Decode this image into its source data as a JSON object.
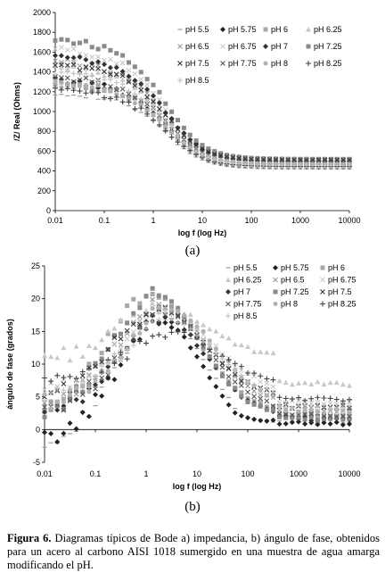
{
  "panel_labels": {
    "a": "(a)",
    "b": "(b)"
  },
  "caption": {
    "figure_label": "Figura 6.",
    "text": " Diagramas típicos de Bode a) impedancia, b) ángulo de fase, obtenidos para un acero al carbono AISI 1018 sumergido en una muestra de agua amarga modificando el pH."
  },
  "chart_data": [
    {
      "type": "scatter",
      "xlabel": "log f (log Hz)",
      "ylabel": "/Z/ Real (Ohms)",
      "x_scale": "log",
      "xlim": [
        0.01,
        10000
      ],
      "ylim": [
        0,
        2000
      ],
      "x_ticks": [
        "0.01",
        "0.1",
        "1",
        "10",
        "100",
        "1000",
        "10000"
      ],
      "y_ticks": [
        "0",
        "200",
        "400",
        "600",
        "800",
        "1000",
        "1200",
        "1400",
        "1600",
        "1800",
        "2000"
      ],
      "grid": false,
      "legend_placement": "top-right",
      "legend_columns": 4,
      "series": [
        {
          "name": "pH 5.5",
          "marker": "dash",
          "color": "#9a9a9a",
          "low": 1200,
          "mid": 900,
          "hf": 420
        },
        {
          "name": "pH 5.75",
          "marker": "diamond",
          "color": "#222222",
          "low": 1320,
          "mid": 1050,
          "hf": 470
        },
        {
          "name": "pH 6",
          "marker": "square",
          "color": "#a8a8a8",
          "low": 1300,
          "mid": 1080,
          "hf": 440
        },
        {
          "name": "pH 6.25",
          "marker": "triangle",
          "color": "#c8c8c8",
          "low": 1460,
          "mid": 1150,
          "hf": 450
        },
        {
          "name": "pH 6.5",
          "marker": "x",
          "color": "#9a9a9a",
          "low": 1520,
          "mid": 1100,
          "hf": 480
        },
        {
          "name": "pH 6.75",
          "marker": "x",
          "color": "#c8c8c8",
          "low": 1640,
          "mid": 1250,
          "hf": 460
        },
        {
          "name": "pH 7",
          "marker": "diamond",
          "color": "#333333",
          "low": 1560,
          "mid": 1200,
          "hf": 500
        },
        {
          "name": "pH 7.25",
          "marker": "square",
          "color": "#8a8a8a",
          "low": 1740,
          "mid": 1380,
          "hf": 520
        },
        {
          "name": "pH 7.5",
          "marker": "x",
          "color": "#333333",
          "low": 1480,
          "mid": 1180,
          "hf": 510
        },
        {
          "name": "pH 7.75",
          "marker": "x",
          "color": "#555555",
          "low": 1350,
          "mid": 1120,
          "hf": 490
        },
        {
          "name": "pH 8",
          "marker": "circle",
          "color": "#b0b0b0",
          "low": 1280,
          "mid": 1000,
          "hf": 470
        },
        {
          "name": "pH 8.25",
          "marker": "plus",
          "color": "#444444",
          "low": 1220,
          "mid": 980,
          "hf": 445
        },
        {
          "name": "pH 8.5",
          "marker": "plus",
          "color": "#c0c0c0",
          "low": 1400,
          "mid": 1060,
          "hf": 455
        }
      ]
    },
    {
      "type": "scatter",
      "xlabel": "log f (log Hz)",
      "ylabel": "ángulo de fase (grados)",
      "x_scale": "log",
      "xlim": [
        0.01,
        10000
      ],
      "ylim": [
        -5,
        25
      ],
      "x_ticks": [
        "0.01",
        "0.1",
        "1",
        "10",
        "100",
        "1000",
        "10000"
      ],
      "y_ticks": [
        "-5",
        "0",
        "5",
        "10",
        "15",
        "20",
        "25"
      ],
      "grid": false,
      "legend_placement": "top-right",
      "legend_columns": 3,
      "series": [
        {
          "name": "pH 5.5",
          "marker": "dash",
          "color": "#9a9a9a",
          "start": -2,
          "peak": 17.5,
          "peak_f": 2.0
        },
        {
          "name": "pH 5.75",
          "marker": "diamond",
          "color": "#222222",
          "start": -2,
          "peak": 16.5,
          "peak_f": 1.8
        },
        {
          "name": "pH 6",
          "marker": "square",
          "color": "#a8a8a8",
          "start": 3,
          "peak": 20.5,
          "peak_f": 1.3
        },
        {
          "name": "pH 6.25",
          "marker": "triangle",
          "color": "#c8c8c8",
          "start": 11,
          "peak": 18.5,
          "peak_f": 2.2
        },
        {
          "name": "pH 6.5",
          "marker": "x",
          "color": "#9a9a9a",
          "start": 4,
          "peak": 19.0,
          "peak_f": 2.0
        },
        {
          "name": "pH 6.75",
          "marker": "x",
          "color": "#c8c8c8",
          "start": 6,
          "peak": 18.0,
          "peak_f": 2.5
        },
        {
          "name": "pH 7",
          "marker": "diamond",
          "color": "#333333",
          "start": 2,
          "peak": 17.0,
          "peak_f": 2.0
        },
        {
          "name": "pH 7.25",
          "marker": "square",
          "color": "#8a8a8a",
          "start": 2,
          "peak": 20.8,
          "peak_f": 1.5
        },
        {
          "name": "pH 7.5",
          "marker": "x",
          "color": "#333333",
          "start": 5,
          "peak": 18.5,
          "peak_f": 1.8
        },
        {
          "name": "pH 7.75",
          "marker": "x",
          "color": "#555555",
          "start": 3,
          "peak": 17.8,
          "peak_f": 2.2
        },
        {
          "name": "pH 8",
          "marker": "circle",
          "color": "#b0b0b0",
          "start": 4,
          "peak": 18.5,
          "peak_f": 2.8
        },
        {
          "name": "pH 8.25",
          "marker": "plus",
          "color": "#444444",
          "start": 7,
          "peak": 15.0,
          "peak_f": 3.0
        },
        {
          "name": "pH 8.5",
          "marker": "plus",
          "color": "#c0c0c0",
          "start": 5,
          "peak": 17.0,
          "peak_f": 2.5
        }
      ]
    }
  ]
}
